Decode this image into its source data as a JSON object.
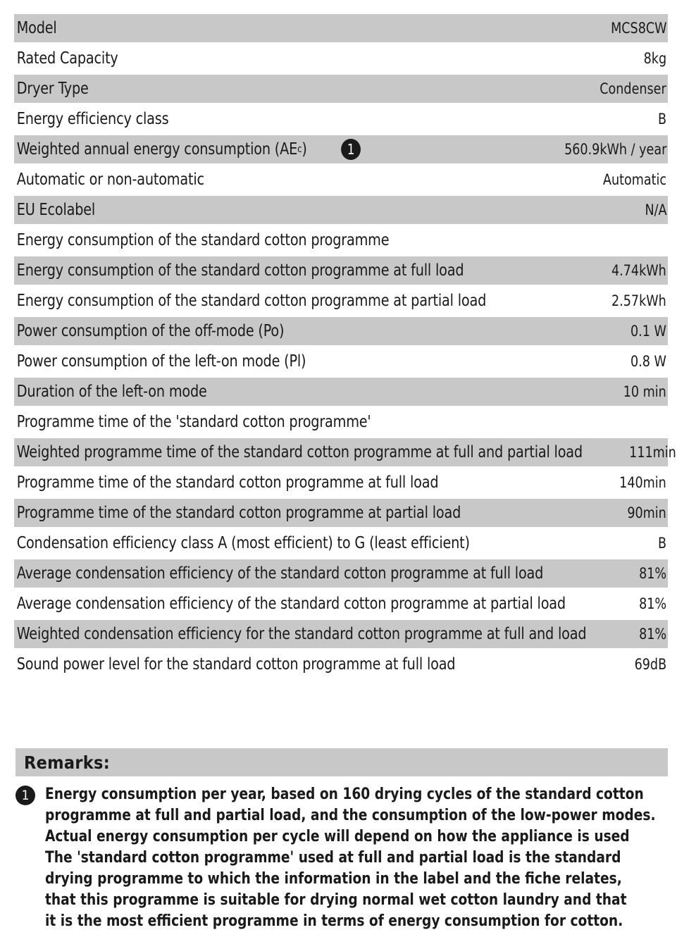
{
  "specs": [
    {
      "label": "Model",
      "value": "MCS8CW",
      "shaded": true
    },
    {
      "label": "Rated Capacity",
      "value": "8kg",
      "shaded": false
    },
    {
      "label": "Dryer Type",
      "value": "Condenser",
      "shaded": true
    },
    {
      "label": "Energy efficiency class",
      "value": "B",
      "shaded": false
    },
    {
      "label": "Weighted annual energy consumption (AE",
      "label_sub": "c",
      "label_suffix": ")",
      "note_marker": "1",
      "value": "560.9kWh / year",
      "shaded": true
    },
    {
      "label": "Automatic or non-automatic",
      "value": "Automatic",
      "shaded": false
    },
    {
      "label": "EU Ecolabel",
      "value": "N/A",
      "shaded": true
    },
    {
      "label": "Energy consumption of the standard cotton programme",
      "value": "",
      "shaded": false
    },
    {
      "label": "Energy consumption of the standard cotton programme at full load",
      "value": "4.74kWh",
      "shaded": true
    },
    {
      "label": "Energy consumption of the standard cotton programme at partial load",
      "value": "2.57kWh",
      "shaded": false
    },
    {
      "label": "Power consumption of the off-mode (Po)",
      "value": "0.1 W",
      "shaded": true
    },
    {
      "label": "Power consumption of the left-on mode (Pl)",
      "value": "0.8 W",
      "shaded": false
    },
    {
      "label": "Duration of the left-on mode",
      "value": "10 min",
      "shaded": true
    },
    {
      "label": "Programme time of the 'standard cotton programme'",
      "value": "",
      "shaded": false
    },
    {
      "label": "Weighted programme time of the standard cotton programme at full and partial load",
      "value": "111min",
      "shaded": true
    },
    {
      "label": "Programme time of the standard cotton programme at full load",
      "value": "140min",
      "shaded": false
    },
    {
      "label": "Programme time of the standard cotton programme at partial load",
      "value": "90min",
      "shaded": true
    },
    {
      "label": "Condensation efficiency class A (most efficient) to G (least efficient)",
      "value": "B",
      "shaded": false
    },
    {
      "label": "Average condensation efficiency of the standard cotton programme at full load",
      "value": "81%",
      "shaded": true
    },
    {
      "label": "Average condensation efficiency of the standard cotton programme at partial load",
      "value": "81%",
      "shaded": false
    },
    {
      "label": "Weighted condensation efficiency for the standard cotton programme at full and load",
      "value": "81%",
      "shaded": true
    },
    {
      "label": "Sound power level for the standard cotton programme at full load",
      "value": "69dB",
      "shaded": false
    }
  ],
  "remarks": {
    "title": "Remarks:",
    "marker": "1",
    "lines": [
      "Energy consumption  per year, based on 160 drying cycles of the standard cotton",
      "programme at full and partial load, and the consumption of the low-power modes.",
      "Actual energy consumption per cycle will depend on how the appliance is used",
      "The 'standard cotton programme' used at full and partial load is the standard",
      "drying programme to which the information in the label and the fiche relates,",
      "that this programme is suitable for drying normal wet cotton laundry and that",
      "it is the most efficient programme in terms of energy consumption for cotton."
    ]
  }
}
